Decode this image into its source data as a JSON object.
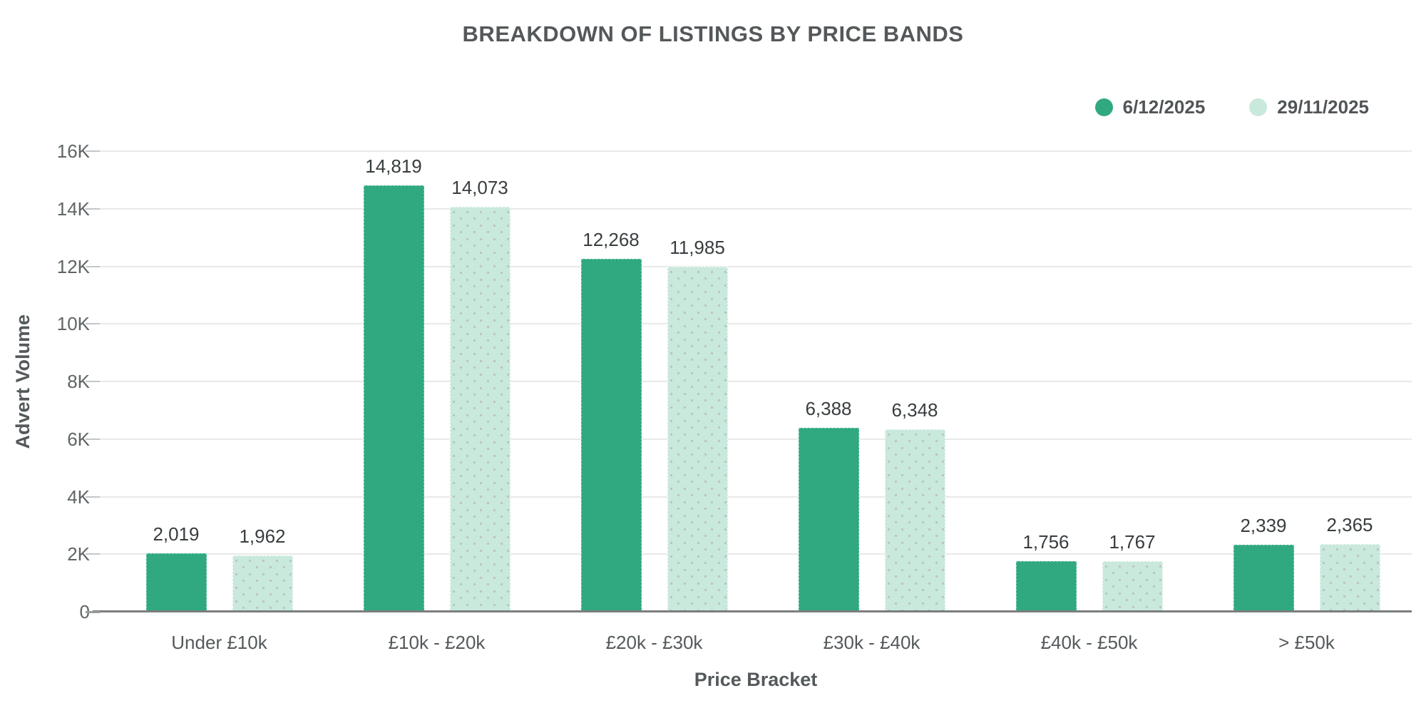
{
  "chart_data": {
    "type": "bar",
    "title": "BREAKDOWN OF LISTINGS BY PRICE BANDS",
    "xlabel": "Price Bracket",
    "ylabel": "Advert Volume",
    "categories": [
      "Under £10k",
      "£10k - £20k",
      "£20k - £30k",
      "£30k - £40k",
      "£40k - £50k",
      "> £50k"
    ],
    "series": [
      {
        "name": "6/12/2025",
        "color": "#30A981",
        "fill_style": "solid",
        "values": [
          2019,
          14819,
          12268,
          6388,
          1756,
          2339
        ],
        "value_labels": [
          "2,019",
          "14,819",
          "12,268",
          "6,388",
          "1,756",
          "2,339"
        ]
      },
      {
        "name": "29/11/2025",
        "color": "#C8E9DB",
        "fill_style": "dots",
        "values": [
          1962,
          14073,
          11985,
          6348,
          1767,
          2365
        ],
        "value_labels": [
          "1,962",
          "14,073",
          "11,985",
          "6,348",
          "1,767",
          "2,365"
        ]
      }
    ],
    "ylim": [
      0,
      16000
    ],
    "yticks": [
      0,
      2000,
      4000,
      6000,
      8000,
      10000,
      12000,
      14000,
      16000
    ],
    "ytick_labels": [
      "0",
      "2K",
      "4K",
      "6K",
      "8K",
      "10K",
      "12K",
      "14K",
      "16K"
    ],
    "legend_position": "top-right",
    "grid": "horizontal",
    "colors": {
      "grid_line": "#e8e9e9",
      "baseline": "#7b7e7f",
      "title_text": "#54585a",
      "label_text": "#54595b"
    }
  }
}
